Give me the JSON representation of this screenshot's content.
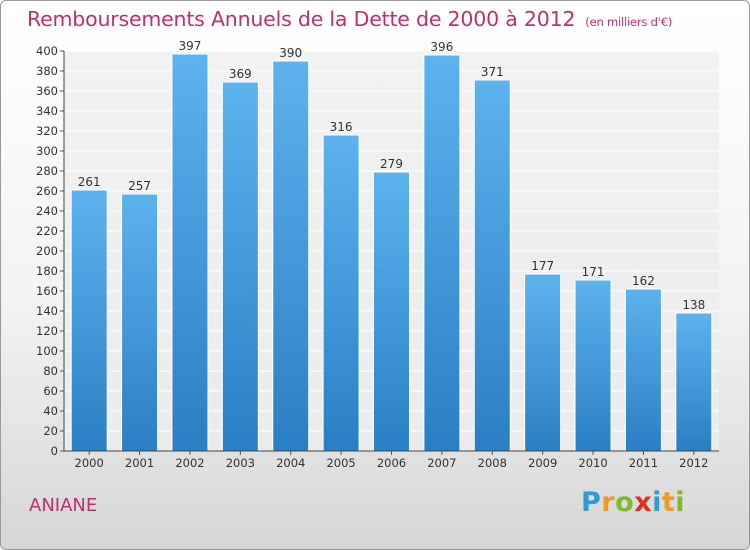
{
  "chart_data": {
    "type": "bar",
    "title": "Remboursements Annuels de la Dette de 2000 à 2012",
    "subtitle": "(en milliers d'€)",
    "categories": [
      "2000",
      "2001",
      "2002",
      "2003",
      "2004",
      "2005",
      "2006",
      "2007",
      "2008",
      "2009",
      "2010",
      "2011",
      "2012"
    ],
    "values": [
      261,
      257,
      397,
      369,
      390,
      316,
      279,
      396,
      371,
      177,
      171,
      162,
      138
    ],
    "ylim": [
      0,
      400
    ],
    "yticks": [
      0,
      20,
      40,
      60,
      80,
      100,
      120,
      140,
      160,
      180,
      200,
      220,
      240,
      260,
      280,
      300,
      320,
      340,
      360,
      380,
      400
    ],
    "grid": true,
    "bar_color": "#4aa3e3"
  },
  "commune": "ANIANE",
  "brand": "Proxiti"
}
